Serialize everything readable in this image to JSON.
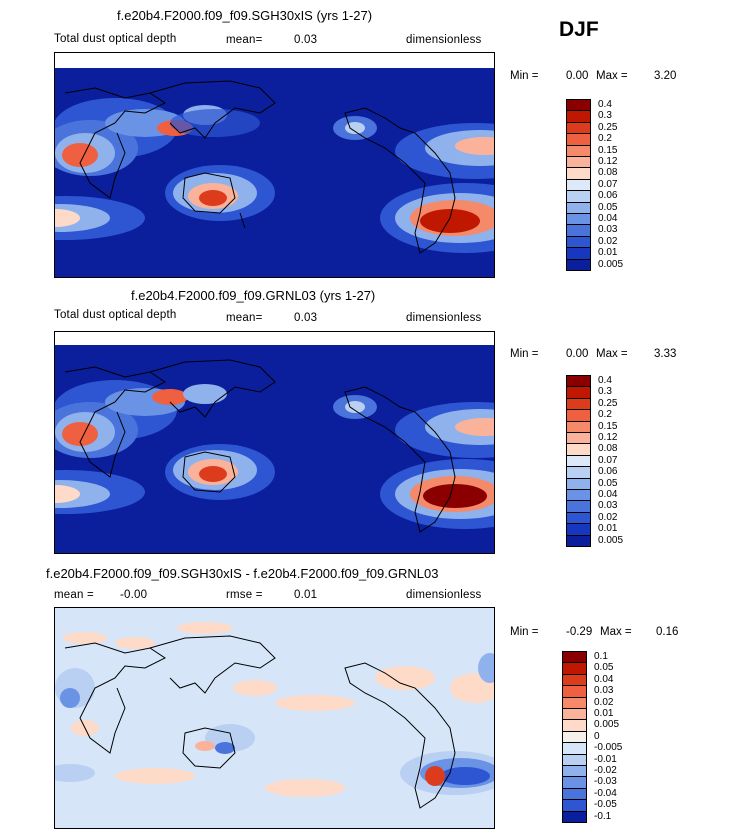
{
  "season": "DJF",
  "panels": [
    {
      "title": "f.e20b4.F2000.f09_f09.SGH30xIS (yrs 1-27)",
      "variable": "Total dust optical depth",
      "stat1_label": "mean=",
      "stat1_value": "0.03",
      "stat2_label": "",
      "stat2_value": "",
      "units": "dimensionless",
      "min_label": "Min =",
      "min_value": "0.00",
      "max_label": "Max =",
      "max_value": "3.20",
      "levels": [
        "0.4",
        "0.3",
        "0.25",
        "0.2",
        "0.15",
        "0.12",
        "0.08",
        "0.07",
        "0.06",
        "0.05",
        "0.04",
        "0.03",
        "0.02",
        "0.01",
        "0.005"
      ],
      "colors": [
        "#8a0000",
        "#c01800",
        "#dd3c1c",
        "#ee6040",
        "#f58a6a",
        "#fab39a",
        "#fddbc8",
        "#dde9f8",
        "#b9d0f2",
        "#8fb2ec",
        "#6a93e6",
        "#4a74dc",
        "#2e55d2",
        "#1837c0",
        "#0b1f9c"
      ]
    },
    {
      "title": "f.e20b4.F2000.f09_f09.GRNL03 (yrs 1-27)",
      "variable": "Total dust optical depth",
      "stat1_label": "mean=",
      "stat1_value": "0.03",
      "stat2_label": "",
      "stat2_value": "",
      "units": "dimensionless",
      "min_label": "Min =",
      "min_value": "0.00",
      "max_label": "Max =",
      "max_value": "3.33",
      "levels": [
        "0.4",
        "0.3",
        "0.25",
        "0.2",
        "0.15",
        "0.12",
        "0.08",
        "0.07",
        "0.06",
        "0.05",
        "0.04",
        "0.03",
        "0.02",
        "0.01",
        "0.005"
      ],
      "colors": [
        "#8a0000",
        "#c01800",
        "#dd3c1c",
        "#ee6040",
        "#f58a6a",
        "#fab39a",
        "#fddbc8",
        "#dde9f8",
        "#b9d0f2",
        "#8fb2ec",
        "#6a93e6",
        "#4a74dc",
        "#2e55d2",
        "#1837c0",
        "#0b1f9c"
      ]
    },
    {
      "title": "f.e20b4.F2000.f09_f09.SGH30xIS - f.e20b4.F2000.f09_f09.GRNL03",
      "variable": "",
      "stat1_label": "mean =",
      "stat1_value": "-0.00",
      "stat2_label": "rmse =",
      "stat2_value": "0.01",
      "units": "dimensionless",
      "min_label": "Min =",
      "min_value": "-0.29",
      "max_label": "Max =",
      "max_value": "0.16",
      "levels": [
        "0.1",
        "0.05",
        "0.04",
        "0.03",
        "0.02",
        "0.01",
        "0.005",
        "0",
        "-0.005",
        "-0.01",
        "-0.02",
        "-0.03",
        "-0.04",
        "-0.05",
        "-0.1"
      ],
      "colors": [
        "#8a0000",
        "#c01800",
        "#dd3c1c",
        "#ee6040",
        "#f58a6a",
        "#fab39a",
        "#fddbc8",
        "#f5f0ec",
        "#d6e6f8",
        "#b9d0f2",
        "#8fb2ec",
        "#6a93e6",
        "#4a74dc",
        "#2e55d2",
        "#0b1f9c"
      ]
    }
  ],
  "chart_data": [
    {
      "type": "heatmap",
      "title": "f.e20b4.F2000.f09_f09.SGH30xIS (yrs 1-27)",
      "variable": "Total dust optical depth",
      "units": "dimensionless",
      "mean": 0.03,
      "min": 0.0,
      "max": 3.2,
      "contour_levels": [
        0.005,
        0.01,
        0.02,
        0.03,
        0.04,
        0.05,
        0.06,
        0.07,
        0.08,
        0.12,
        0.15,
        0.2,
        0.25,
        0.3,
        0.4
      ]
    },
    {
      "type": "heatmap",
      "title": "f.e20b4.F2000.f09_f09.GRNL03 (yrs 1-27)",
      "variable": "Total dust optical depth",
      "units": "dimensionless",
      "mean": 0.03,
      "min": 0.0,
      "max": 3.33,
      "contour_levels": [
        0.005,
        0.01,
        0.02,
        0.03,
        0.04,
        0.05,
        0.06,
        0.07,
        0.08,
        0.12,
        0.15,
        0.2,
        0.25,
        0.3,
        0.4
      ]
    },
    {
      "type": "heatmap",
      "title": "f.e20b4.F2000.f09_f09.SGH30xIS - f.e20b4.F2000.f09_f09.GRNL03",
      "units": "dimensionless",
      "mean": -0.0,
      "rmse": 0.01,
      "min": -0.29,
      "max": 0.16,
      "contour_levels": [
        -0.1,
        -0.05,
        -0.04,
        -0.03,
        -0.02,
        -0.01,
        -0.005,
        0,
        0.005,
        0.01,
        0.02,
        0.03,
        0.04,
        0.05,
        0.1
      ]
    }
  ]
}
